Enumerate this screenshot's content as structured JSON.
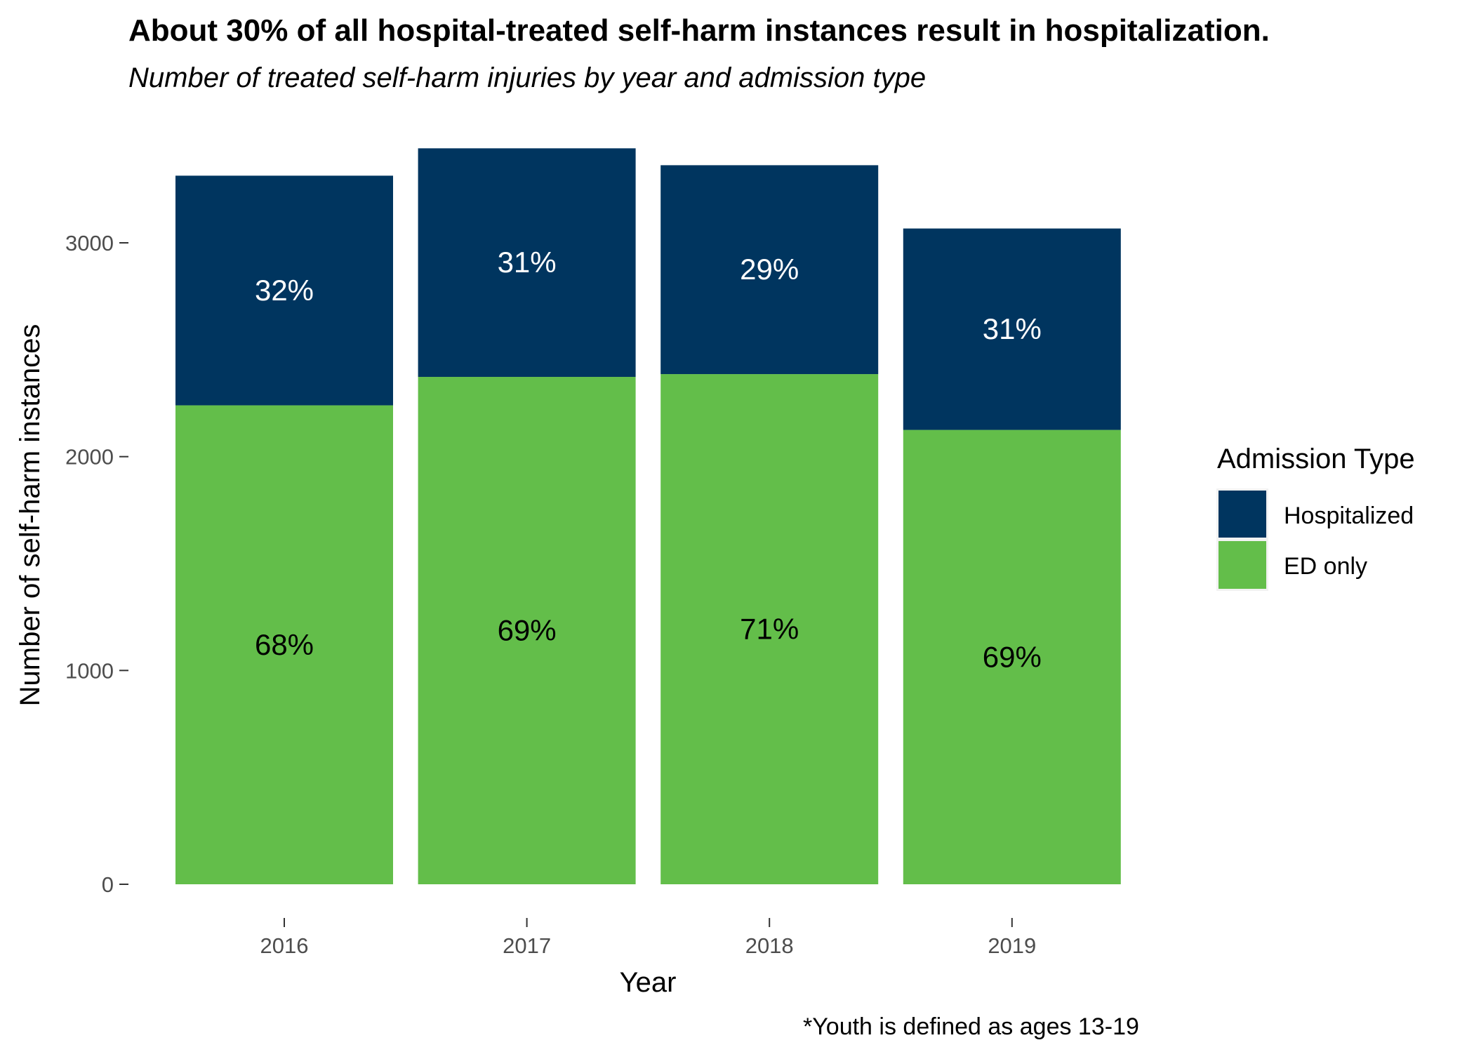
{
  "chart_data": {
    "type": "bar",
    "stacked": true,
    "title": "About 30% of all hospital-treated self-harm instances result in hospitalization.",
    "subtitle": "Number of treated self-harm injuries by year and admission type",
    "xlabel": "Year",
    "ylabel": "Number of self-harm instances",
    "caption": "*Youth is defined as ages 13-19",
    "categories": [
      "2016",
      "2017",
      "2018",
      "2019"
    ],
    "ylim": [
      0,
      3450
    ],
    "yticks": [
      0,
      1000,
      2000,
      3000
    ],
    "grid": false,
    "legend": {
      "title": "Admission Type",
      "placement": "right"
    },
    "series": [
      {
        "name": "ED only",
        "color": "#63BE4A",
        "label_color": "#000000",
        "values": [
          2240,
          2373,
          2386,
          2125
        ],
        "labels": [
          "68%",
          "69%",
          "71%",
          "69%"
        ]
      },
      {
        "name": "Hospitalized",
        "color": "#00355F",
        "label_color": "#FFFFFF",
        "values": [
          1074,
          1069,
          977,
          942
        ],
        "labels": [
          "32%",
          "31%",
          "29%",
          "31%"
        ]
      }
    ]
  }
}
